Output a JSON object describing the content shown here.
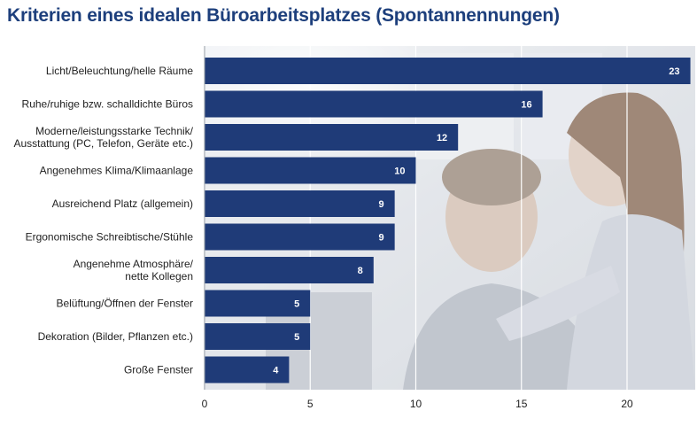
{
  "title": "Kriterien eines idealen Büroarbeitsplatzes (Spontannennungen)",
  "colors": {
    "title": "#1d3f7c",
    "bar": "#1f3b78",
    "bar_text": "#ffffff"
  },
  "chart_data": {
    "type": "bar",
    "orientation": "horizontal",
    "title": "Kriterien eines idealen Büroarbeitsplatzes (Spontannennungen)",
    "xlabel": "",
    "ylabel": "",
    "xlim": [
      0,
      23
    ],
    "xticks": [
      0,
      5,
      10,
      15,
      20
    ],
    "grid": true,
    "categories": [
      [
        "Licht/Beleuchtung/helle Räume"
      ],
      [
        "Ruhe/ruhige bzw. schalldichte Büros"
      ],
      [
        "Moderne/leistungsstarke Technik/",
        "Ausstattung (PC, Telefon, Geräte etc.)"
      ],
      [
        "Angenehmes Klima/Klimaanlage"
      ],
      [
        "Ausreichend Platz (allgemein)"
      ],
      [
        "Ergonomische Schreibtische/Stühle"
      ],
      [
        "Angenehme Atmosphäre/",
        "nette Kollegen"
      ],
      [
        "Belüftung/Öffnen der Fenster"
      ],
      [
        "Dekoration (Bilder, Pflanzen etc.)"
      ],
      [
        "Große Fenster"
      ]
    ],
    "values": [
      23,
      16,
      12,
      10,
      9,
      9,
      8,
      5,
      5,
      4
    ]
  }
}
